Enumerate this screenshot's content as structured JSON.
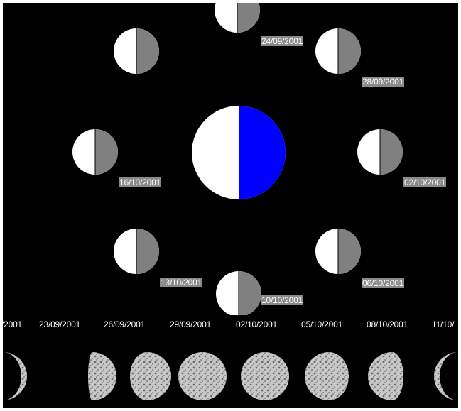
{
  "orbit": {
    "central_phase": {
      "lit_color": "#ffffff",
      "dark_color": "#0000ff"
    },
    "small_moon_colors": {
      "lit": "#ffffff",
      "dark": "#808080"
    },
    "labels": [
      "24/09/2001",
      "28/09/2001",
      "02/10/2001",
      "06/10/2001",
      "10/10/2001",
      "13/10/2001",
      "16/10/2001"
    ]
  },
  "strip": {
    "dates": [
      "/2001",
      "23/09/2001",
      "26/09/2001",
      "29/09/2001",
      "02/10/2001",
      "05/10/2001",
      "08/10/2001",
      "11/10/"
    ]
  },
  "colors": {
    "background": "#000000",
    "label_bg": "#8a8a8a"
  }
}
